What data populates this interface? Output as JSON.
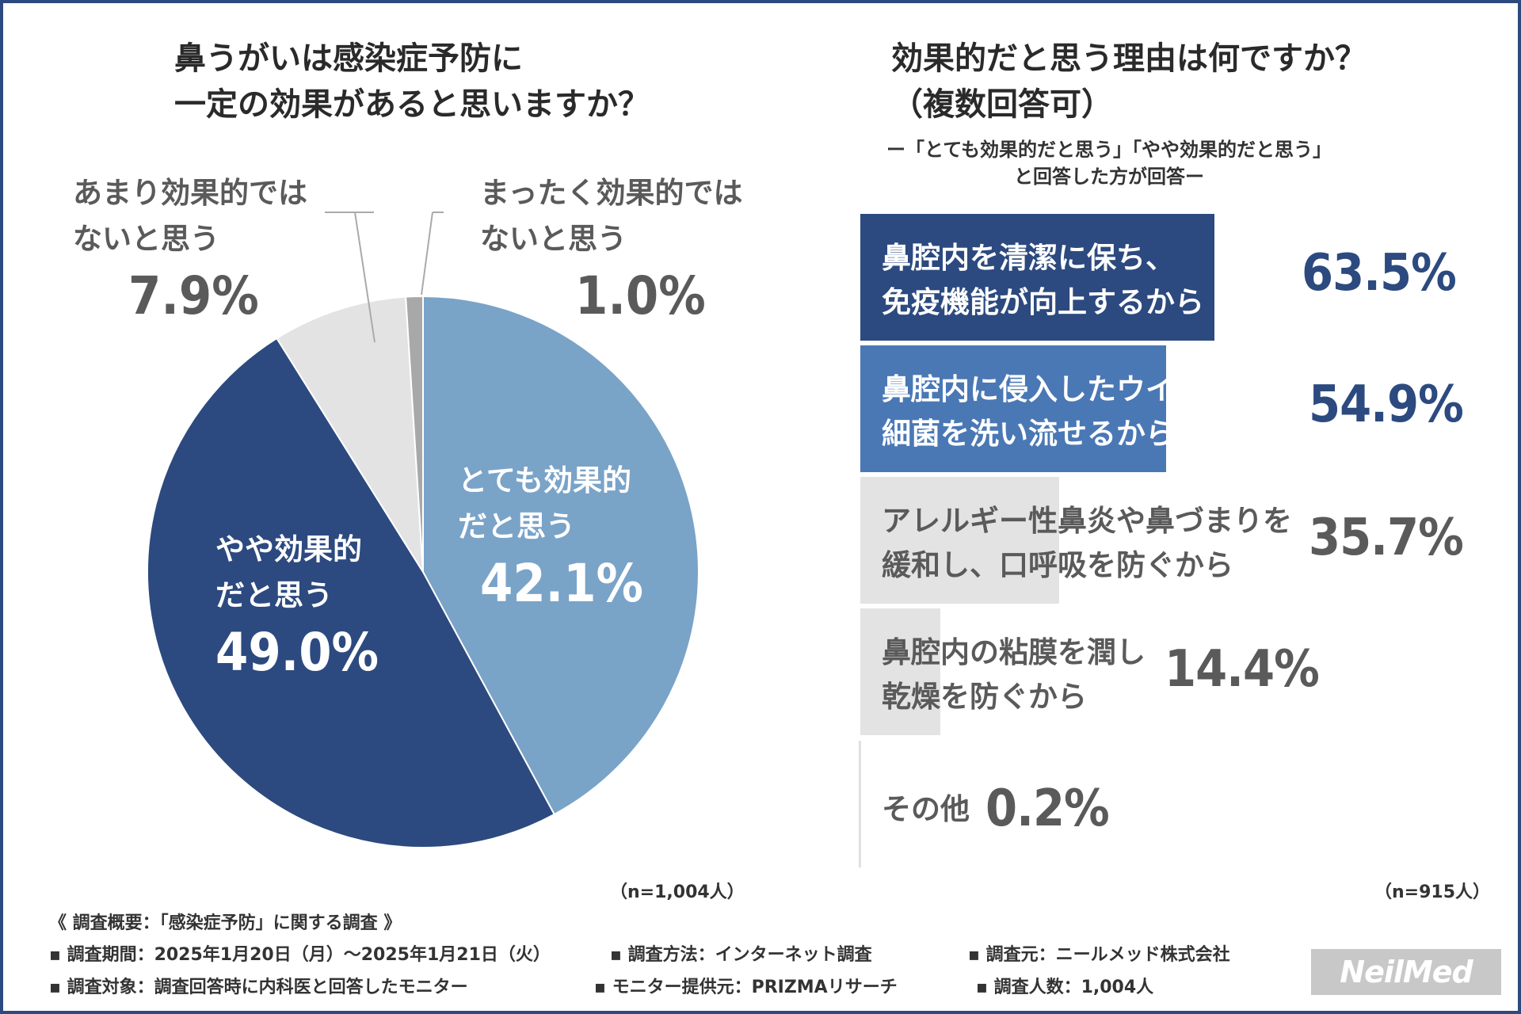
{
  "pie": {
    "title_line1": "鼻うがいは感染症予防に",
    "title_line2": "一定の効果があると思いますか？",
    "note": "（n=1,004人）"
  },
  "bars": {
    "title_line1": "効果的だと思う理由は何ですか？",
    "title_line2": "（複数回答可）",
    "sub_line1": "ー「とても効果的だと思う」「やや効果的だと思う」",
    "sub_line2": "と回答した方が回答ー",
    "note": "（n=915人）"
  },
  "chart_data": [
    {
      "type": "pie",
      "title": "鼻うがいは感染症予防に一定の効果があると思いますか？",
      "slices": [
        {
          "label_line1": "とても効果的",
          "label_line2": "だと思う",
          "value": 42.1,
          "display": "42.1%",
          "color": "#7aa3c8"
        },
        {
          "label_line1": "やや効果的",
          "label_line2": "だと思う",
          "value": 49.0,
          "display": "49.0%",
          "color": "#2c4a7f"
        },
        {
          "label_line1": "あまり効果的では",
          "label_line2": "ないと思う",
          "value": 7.9,
          "display": "7.9%",
          "color": "#e3e3e3"
        },
        {
          "label_line1": "まったく効果的では",
          "label_line2": "ないと思う",
          "value": 1.0,
          "display": "1.0%",
          "color": "#a8a8a8"
        }
      ],
      "n": "n=1,004人"
    },
    {
      "type": "bar",
      "title": "効果的だと思う理由は何ですか？（複数回答可）",
      "orientation": "horizontal",
      "xlim": [
        0,
        100
      ],
      "categories": [
        {
          "line1": "鼻腔内を清潔に保ち、",
          "line2": "免疫機能が向上するから"
        },
        {
          "line1": "鼻腔内に侵入したウイルスや",
          "line2": "細菌を洗い流せるから"
        },
        {
          "line1": "アレルギー性鼻炎や鼻づまりを",
          "line2": "緩和し、口呼吸を防ぐから"
        },
        {
          "line1": "鼻腔内の粘膜を潤し",
          "line2": "乾燥を防ぐから"
        },
        {
          "line1": "その他",
          "line2": ""
        }
      ],
      "values": [
        63.5,
        54.9,
        35.7,
        14.4,
        0.2
      ],
      "display": [
        "63.5%",
        "54.9%",
        "35.7%",
        "14.4%",
        "0.2%"
      ],
      "bar_colors": [
        "#2c4a7f",
        "#4a78b5",
        "#e3e3e3",
        "#e3e3e3",
        "#e3e3e3"
      ],
      "n": "n=915人"
    }
  ],
  "footer": {
    "heading": "《 調査概要：「感染症予防」に関する調査 》",
    "period": "▪ 調査期間：2025年1月20日（月）〜2025年1月21日（火）",
    "method": "▪ 調査方法：インターネット調査",
    "source": "▪ 調査元：ニールメッド株式会社",
    "target": "▪ 調査対象：調査回答時に内科医と回答したモニター",
    "provider": "▪ モニター提供元：PRIZMAリサーチ",
    "count": "▪ 調査人数：1,004人"
  },
  "logo": "NeilMed"
}
